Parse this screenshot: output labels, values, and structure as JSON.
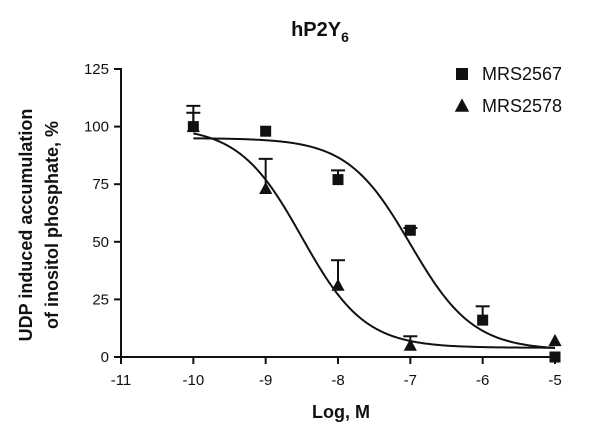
{
  "chart_data": {
    "type": "scatter",
    "title": "hP2Y",
    "title_subscript": "6",
    "xlabel": "Log, M",
    "ylabel_lines": [
      "UDP induced accumulation",
      "of inositol phosphate, %"
    ],
    "xlim": [
      -11,
      -5
    ],
    "ylim": [
      0,
      125
    ],
    "x_ticks": [
      -11,
      -10,
      -9,
      -8,
      -7,
      -6,
      -5
    ],
    "y_ticks": [
      0,
      25,
      50,
      75,
      100,
      125
    ],
    "grid": false,
    "legend_position": "top-right",
    "series": [
      {
        "name": "MRS2567",
        "marker": "square",
        "color": "#111111",
        "x": [
          -10,
          -9,
          -8,
          -7,
          -6,
          -5
        ],
        "y": [
          100,
          98,
          77,
          55,
          16,
          0
        ],
        "error_up": [
          6,
          0,
          4,
          1,
          6,
          0
        ],
        "curve": {
          "top": 95,
          "bottom": 3,
          "logIC50": -7.0,
          "hill": -1.0
        }
      },
      {
        "name": "MRS2578",
        "marker": "triangle",
        "color": "#111111",
        "x": [
          -10,
          -9,
          -8,
          -7,
          -5
        ],
        "y": [
          100,
          73,
          31,
          5,
          7
        ],
        "error_up": [
          9,
          13,
          11,
          4,
          0
        ],
        "curve": {
          "top": 100,
          "bottom": 4,
          "logIC50": -8.5,
          "hill": -1.0
        }
      }
    ]
  }
}
